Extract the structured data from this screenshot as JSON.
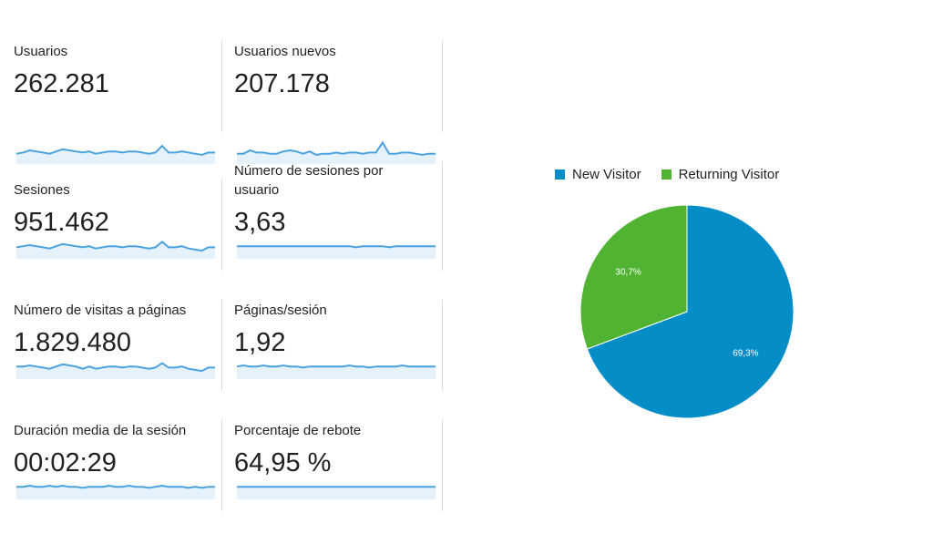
{
  "metrics": [
    {
      "label": "Usuarios",
      "value": "262.281",
      "trend": [
        6,
        7,
        9,
        8,
        7,
        6,
        8,
        10,
        9,
        8,
        7,
        8,
        6,
        7,
        8,
        8,
        7,
        8,
        8,
        7,
        6,
        7,
        13,
        7,
        7,
        8,
        7,
        6,
        5,
        7,
        7
      ]
    },
    {
      "label": "Usuarios nuevos",
      "value": "207.178",
      "trend": [
        6,
        6,
        9,
        7,
        7,
        6,
        6,
        8,
        9,
        8,
        6,
        8,
        5,
        6,
        6,
        7,
        6,
        7,
        7,
        6,
        7,
        7,
        16,
        6,
        6,
        7,
        7,
        6,
        5,
        6,
        6
      ]
    },
    {
      "label": "Sesiones",
      "value": "951.462",
      "trend": [
        7,
        8,
        9,
        8,
        7,
        6,
        8,
        10,
        9,
        8,
        7,
        8,
        6,
        7,
        8,
        8,
        7,
        8,
        8,
        7,
        6,
        7,
        12,
        7,
        7,
        8,
        6,
        5,
        4,
        7,
        7
      ]
    },
    {
      "label": "Número de sesiones por usuario",
      "value": "3,63",
      "trend": [
        8,
        8,
        8,
        8,
        8,
        8,
        8,
        8,
        8,
        8,
        8,
        8,
        8,
        8,
        8,
        8,
        8,
        8,
        7,
        8,
        8,
        8,
        8,
        7,
        8,
        8,
        8,
        8,
        8,
        8,
        8
      ]
    },
    {
      "label": "Número de visitas a páginas",
      "value": "1.829.480",
      "trend": [
        8,
        8,
        9,
        8,
        7,
        6,
        8,
        10,
        9,
        8,
        6,
        8,
        6,
        7,
        8,
        8,
        7,
        8,
        8,
        7,
        6,
        7,
        11,
        7,
        7,
        8,
        6,
        5,
        4,
        7,
        7
      ]
    },
    {
      "label": "Páginas/sesión",
      "value": "1,92",
      "trend": [
        8,
        9,
        8,
        8,
        9,
        8,
        8,
        9,
        8,
        8,
        7,
        8,
        8,
        8,
        8,
        8,
        8,
        9,
        8,
        8,
        7,
        8,
        8,
        8,
        8,
        9,
        8,
        8,
        8,
        8,
        8
      ]
    },
    {
      "label": "Duración media de la sesión",
      "value": "00:02:29",
      "trend": [
        8,
        8,
        9,
        8,
        8,
        9,
        8,
        9,
        8,
        8,
        7,
        8,
        8,
        8,
        9,
        8,
        8,
        9,
        8,
        8,
        7,
        8,
        9,
        8,
        8,
        8,
        7,
        8,
        7,
        8,
        8
      ]
    },
    {
      "label": "Porcentaje de rebote",
      "value": "64,95 %",
      "trend": [
        8,
        8,
        8,
        8,
        8,
        8,
        8,
        8,
        8,
        8,
        8,
        8,
        8,
        8,
        8,
        8,
        8,
        8,
        8,
        8,
        8,
        8,
        8,
        8,
        8,
        8,
        8,
        8,
        8,
        8,
        8
      ]
    }
  ],
  "colors": {
    "spark_line": "#4aa3df",
    "spark_fill": "#e6f2fb",
    "new": "#058dc7",
    "returning": "#50b432"
  },
  "chart_data": {
    "type": "pie",
    "categories": [
      "New Visitor",
      "Returning Visitor"
    ],
    "values": [
      69.3,
      30.7
    ],
    "labels": [
      "69,3%",
      "30,7%"
    ],
    "legend": "top"
  }
}
